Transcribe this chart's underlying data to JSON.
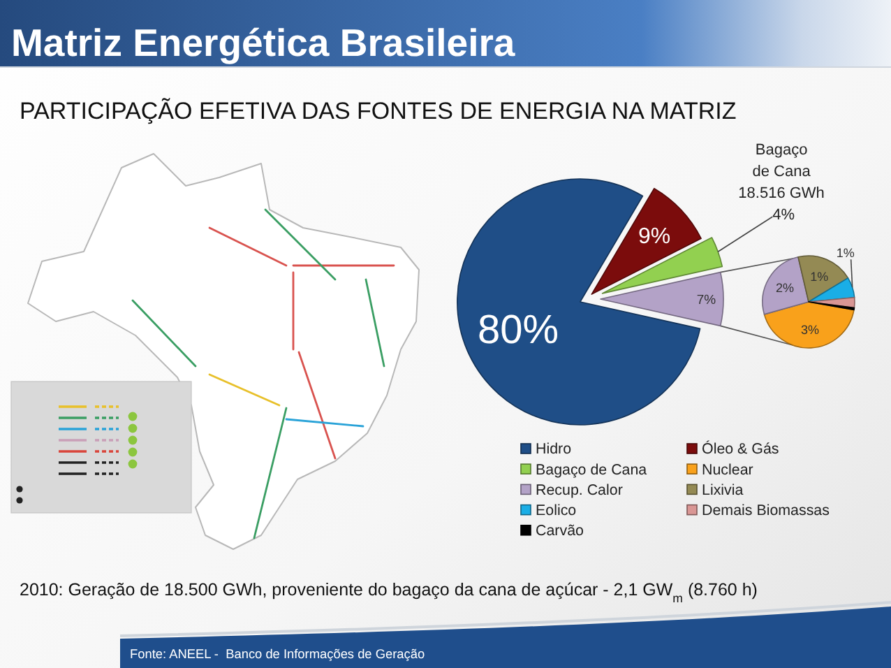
{
  "chart_data": [
    {
      "type": "pie",
      "title": "Matriz Energética Brasileira",
      "subtitle": "PARTICIPAÇÃO EFETIVA DAS FONTES DE ENERGIA NA MATRIZ",
      "categories": [
        "Hidro",
        "Óleo & Gás",
        "Bagaço de Cana",
        null
      ],
      "values": [
        80,
        9,
        4,
        7
      ],
      "colors": [
        "#1f4e87",
        "#7b0c0c",
        "#92d050",
        "#b3a2c7"
      ],
      "value_labels": [
        "80%",
        "9%",
        "Bagaço\nde Cana\n18.516 GWh\n4%",
        "7%"
      ],
      "legend": "bottom",
      "annotations": [
        "2010: Geração de 18.500 GWh, proveniente do bagaço da cana de açúcar - 2,1 GW$_{m}$ (8.760 h)",
        "Fonte: ANEEL -  Banco de Informações de Geração"
      ]
    },
    {
      "type": "pie",
      "categories": [
        "Nuclear",
        "Recup. Calor",
        "Lixivia",
        "Eolico",
        "Demais Biomassas",
        "Carvão"
      ],
      "values": [
        3,
        1.8,
        1.4,
        0.5,
        0.25,
        0.05
      ],
      "colors": [
        "#f9a11b",
        "#b3a2c7",
        "#948a54",
        "#1aaee6",
        "#d99694",
        "#000000"
      ],
      "value_labels": [
        "3%",
        "2%",
        "1%",
        "1%",
        null,
        null
      ],
      "legend": "bottom"
    }
  ]
}
